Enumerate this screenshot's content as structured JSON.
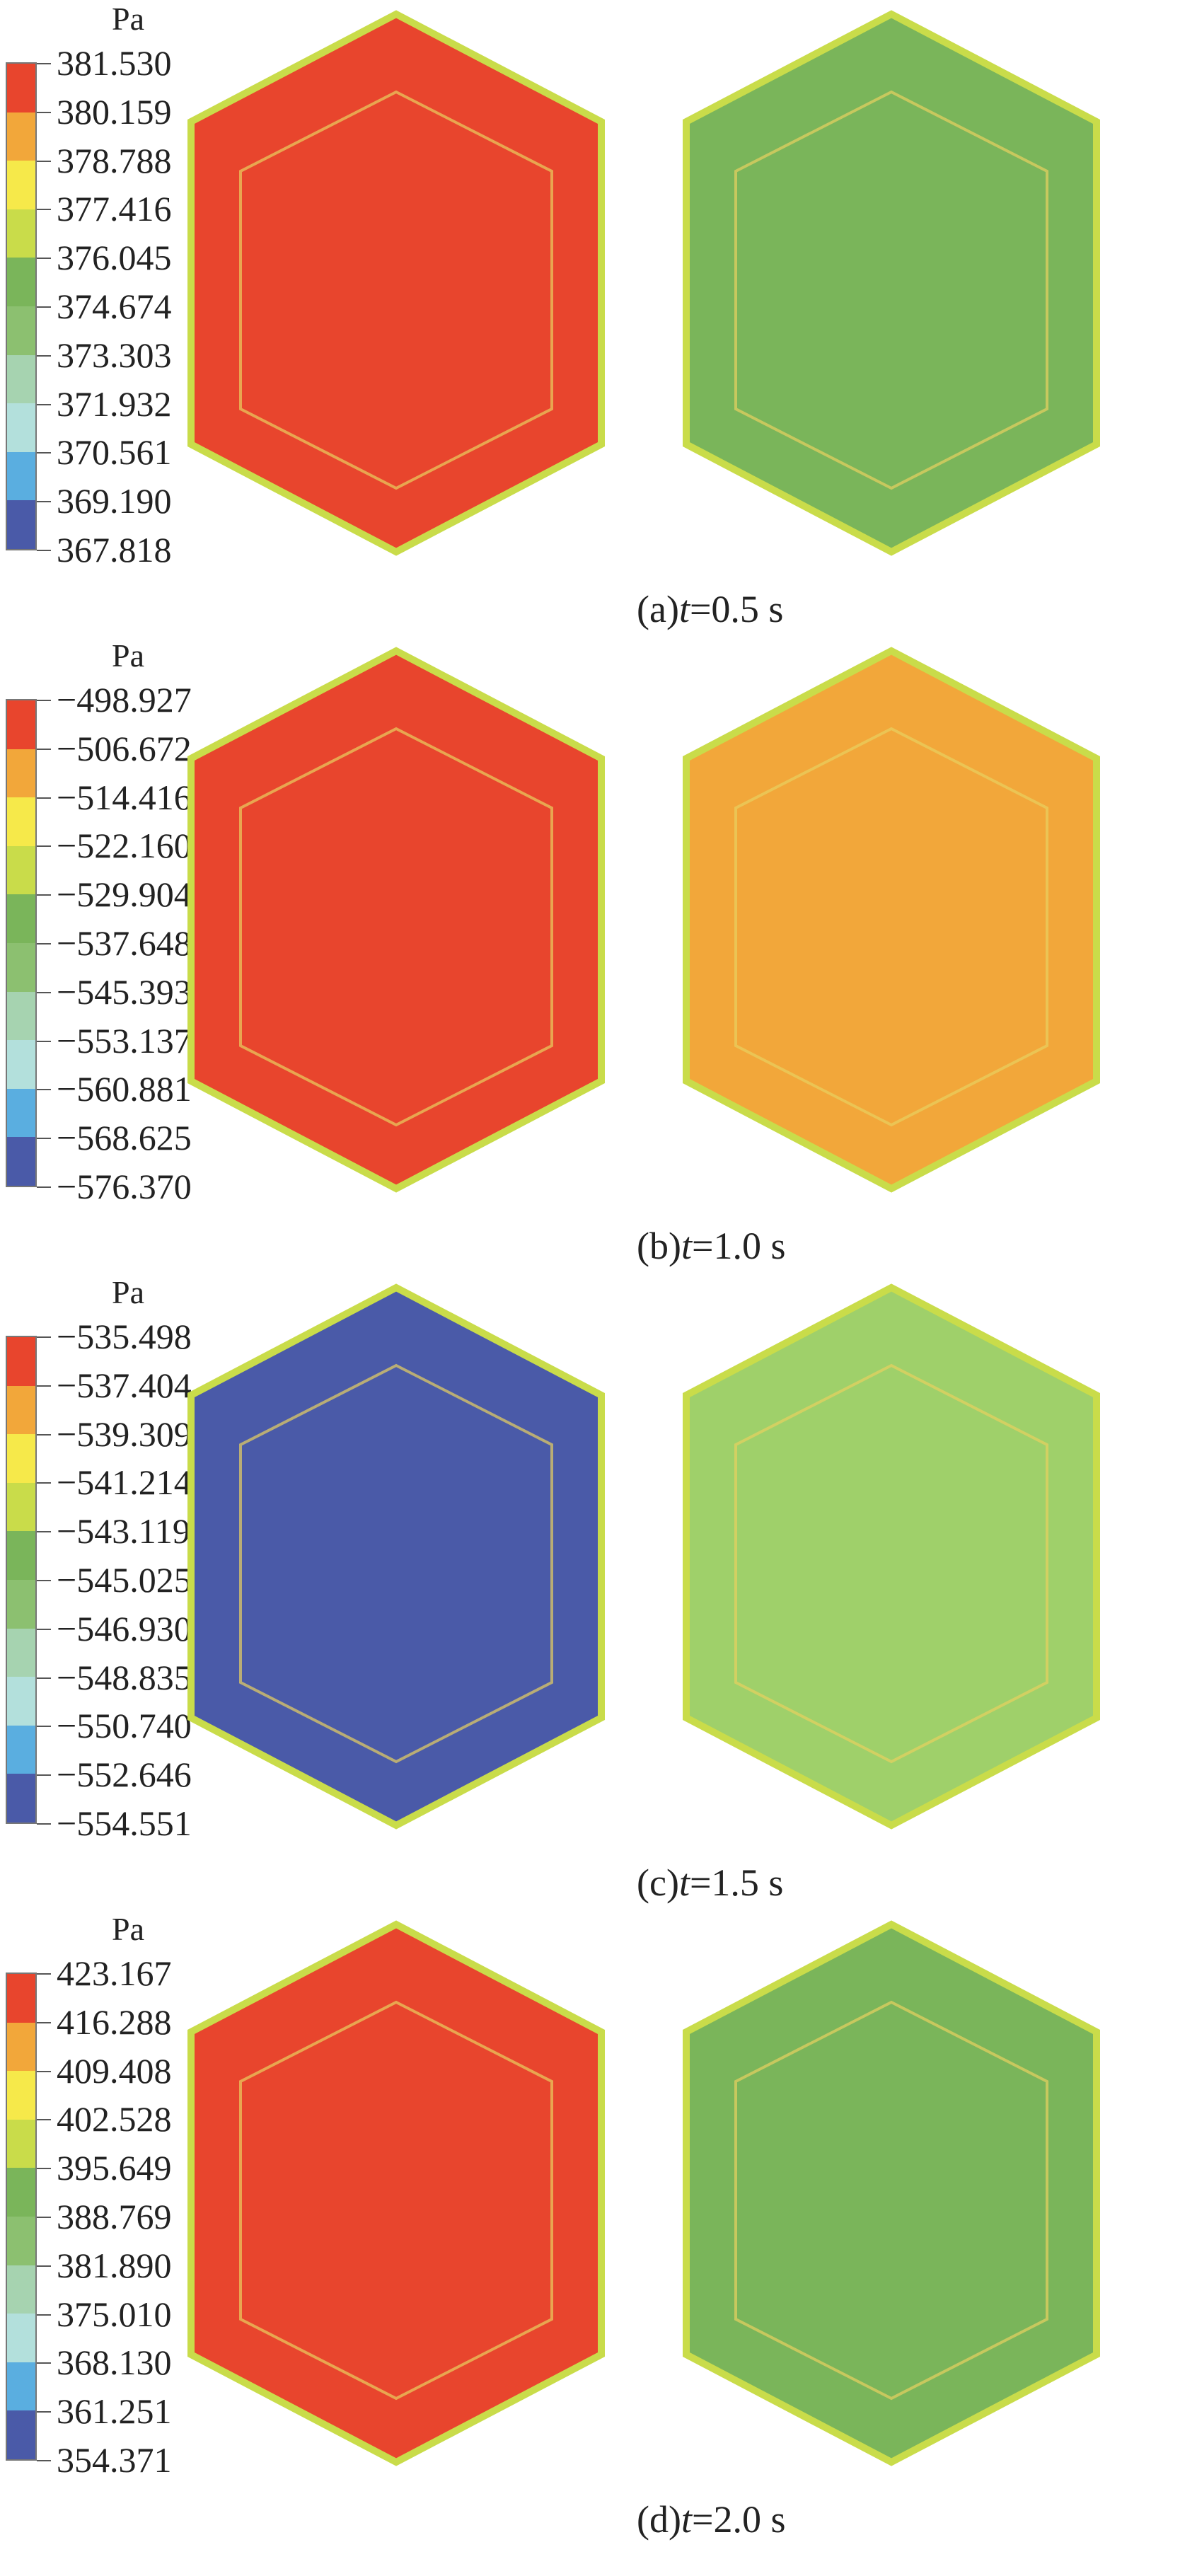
{
  "panels": [
    {
      "id": "a",
      "unit": "Pa",
      "ticks": [
        "381.530",
        "380.159",
        "378.788",
        "377.416",
        "376.045",
        "374.674",
        "373.303",
        "371.932",
        "370.561",
        "369.190",
        "367.818"
      ],
      "caption_prefix": "(a)",
      "caption_var": "t",
      "caption_rest": "=0.5 s",
      "left_base": "#e8452d",
      "right_base": "#7ab55a"
    },
    {
      "id": "b",
      "unit": "Pa",
      "ticks": [
        "−498.927",
        "−506.672",
        "−514.416",
        "−522.160",
        "−529.904",
        "−537.648",
        "−545.393",
        "−553.137",
        "−560.881",
        "−568.625",
        "−576.370"
      ],
      "caption_prefix": "(b)",
      "caption_var": "t",
      "caption_rest": "=1.0 s",
      "left_base": "#e8452d",
      "right_base": "#f2a73a"
    },
    {
      "id": "c",
      "unit": "Pa",
      "ticks": [
        "−535.498",
        "−537.404",
        "−539.309",
        "−541.214",
        "−543.119",
        "−545.025",
        "−546.930",
        "−548.835",
        "−550.740",
        "−552.646",
        "−554.551"
      ],
      "caption_prefix": "(c)",
      "caption_var": "t",
      "caption_rest": "=1.5 s",
      "left_base": "#4a5aa8",
      "right_base": "#9fd06a"
    },
    {
      "id": "d",
      "unit": "Pa",
      "ticks": [
        "423.167",
        "416.288",
        "409.408",
        "402.528",
        "395.649",
        "388.769",
        "381.890",
        "375.010",
        "368.130",
        "361.251",
        "354.371"
      ],
      "caption_prefix": "(d)",
      "caption_var": "t",
      "caption_rest": "=2.0 s",
      "left_base": "#e8452d",
      "right_base": "#7ab55a"
    }
  ],
  "colorbar_colors": [
    "#e8452d",
    "#f2a73a",
    "#f6e94a",
    "#c9dc4a",
    "#7ab55a",
    "#8cc070",
    "#a6d3b0",
    "#b3e0dc",
    "#5aaee0",
    "#4a5aa8"
  ]
}
